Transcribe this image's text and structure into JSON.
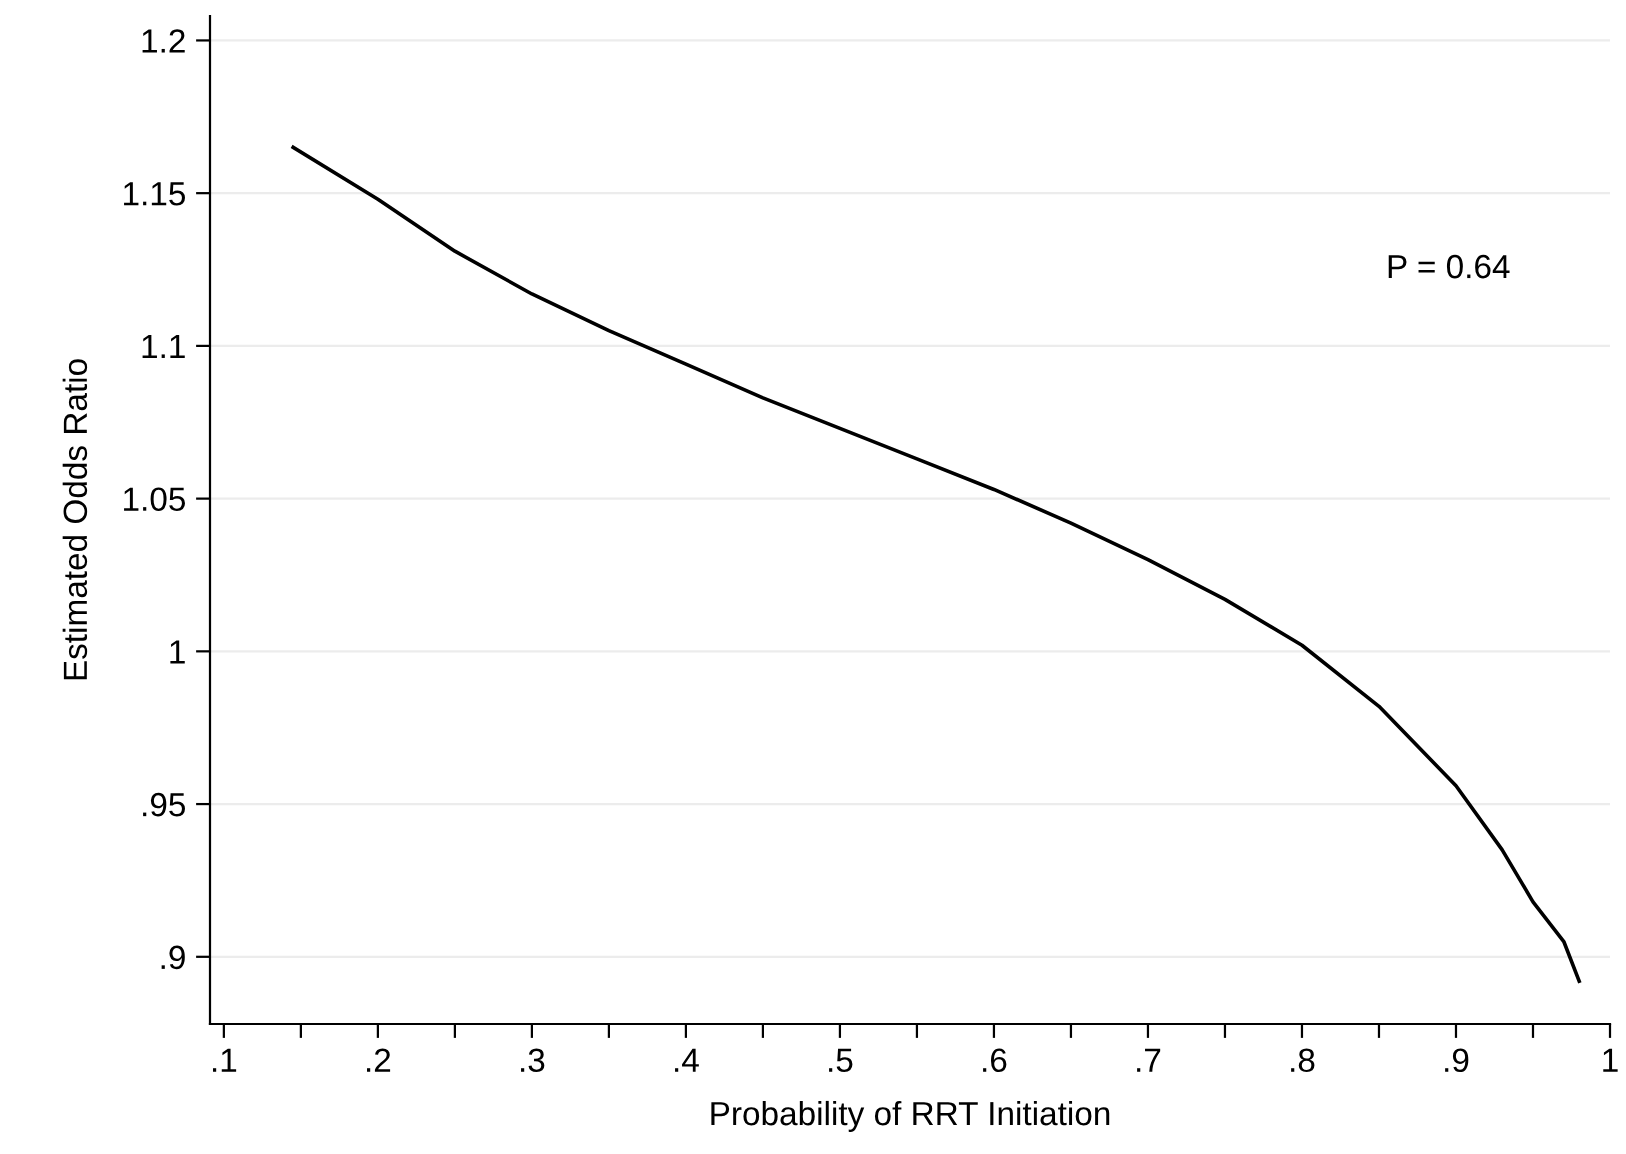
{
  "chart_data": {
    "type": "line",
    "xlabel": "Probability of RRT Initiation",
    "ylabel": "Estimated Odds Ratio",
    "annotations": [
      "P = 0.64"
    ],
    "x": [
      0.145,
      0.2,
      0.25,
      0.3,
      0.35,
      0.4,
      0.45,
      0.5,
      0.55,
      0.6,
      0.65,
      0.7,
      0.75,
      0.8,
      0.85,
      0.9,
      0.93,
      0.95,
      0.97,
      0.98
    ],
    "series": [
      {
        "color": "#000000",
        "values": [
          1.165,
          1.148,
          1.131,
          1.117,
          1.105,
          1.094,
          1.083,
          1.073,
          1.063,
          1.053,
          1.042,
          1.03,
          1.017,
          1.002,
          0.982,
          0.956,
          0.935,
          0.918,
          0.905,
          0.892
        ]
      }
    ],
    "xlim": [
      0.091,
      1.0
    ],
    "ylim": [
      0.878,
      1.208
    ],
    "xticks": [
      {
        "value": 0.1,
        "label": ".1"
      },
      {
        "value": 0.15,
        "label": null
      },
      {
        "value": 0.2,
        "label": ".2"
      },
      {
        "value": 0.25,
        "label": null
      },
      {
        "value": 0.3,
        "label": ".3"
      },
      {
        "value": 0.35,
        "label": null
      },
      {
        "value": 0.4,
        "label": ".4"
      },
      {
        "value": 0.45,
        "label": null
      },
      {
        "value": 0.5,
        "label": ".5"
      },
      {
        "value": 0.55,
        "label": null
      },
      {
        "value": 0.6,
        "label": ".6"
      },
      {
        "value": 0.65,
        "label": null
      },
      {
        "value": 0.7,
        "label": ".7"
      },
      {
        "value": 0.75,
        "label": null
      },
      {
        "value": 0.8,
        "label": ".8"
      },
      {
        "value": 0.85,
        "label": null
      },
      {
        "value": 0.9,
        "label": ".9"
      },
      {
        "value": 0.95,
        "label": null
      },
      {
        "value": 1,
        "label": "1"
      }
    ],
    "yticks": [
      {
        "value": 0.9,
        "label": ".9"
      },
      {
        "value": 0.95,
        "label": ".95"
      },
      1,
      1.05,
      1.1,
      1.15,
      1.2
    ],
    "grid": "y",
    "marker": "none",
    "line_style": "solid"
  }
}
